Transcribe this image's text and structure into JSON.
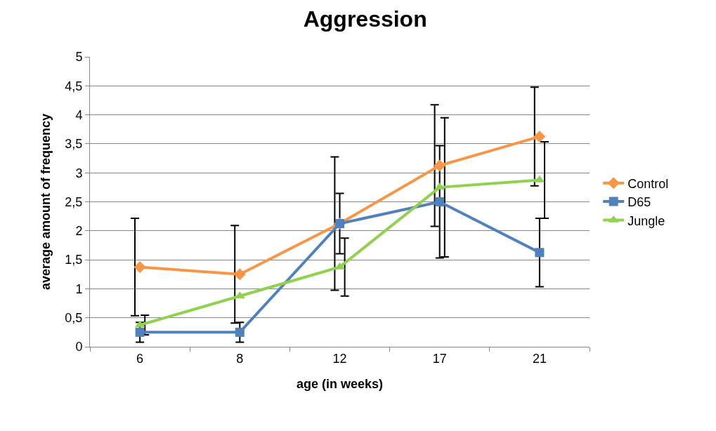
{
  "chart_data": {
    "type": "line",
    "title": "Aggression",
    "xlabel": "age (in weeks)",
    "ylabel": "average amount of frequency",
    "categories": [
      "6",
      "8",
      "12",
      "17",
      "21"
    ],
    "series": [
      {
        "name": "Control",
        "color": "#f79646",
        "marker": "diamond",
        "values": [
          1.375,
          1.25,
          2.125,
          3.125,
          3.625
        ],
        "errors": [
          0.84,
          0.84,
          1.15,
          1.05,
          0.85
        ]
      },
      {
        "name": "D65",
        "color": "#4f81bd",
        "marker": "square",
        "values": [
          0.25,
          0.25,
          2.125,
          2.5,
          1.625
        ],
        "errors": [
          0.17,
          0.17,
          0.52,
          0.97,
          0.59
        ]
      },
      {
        "name": "Jungle",
        "color": "#92d050",
        "marker": "triangle",
        "values": [
          0.375,
          0.875,
          1.375,
          2.75,
          2.875
        ],
        "errors": [
          0.17,
          null,
          0.5,
          1.2,
          0.66
        ]
      }
    ],
    "ylim": [
      0,
      5
    ],
    "yticks": [
      0,
      {
        "value": 0.5,
        "label": "0,5"
      },
      1,
      {
        "value": 1.5,
        "label": "1,5"
      },
      2,
      {
        "value": 2.5,
        "label": "2,5"
      },
      3,
      {
        "value": 3.5,
        "label": "3,5"
      },
      4,
      {
        "value": 4.5,
        "label": "4,5"
      },
      5
    ],
    "grid": "y",
    "legend": "right",
    "line_style": "solid"
  }
}
